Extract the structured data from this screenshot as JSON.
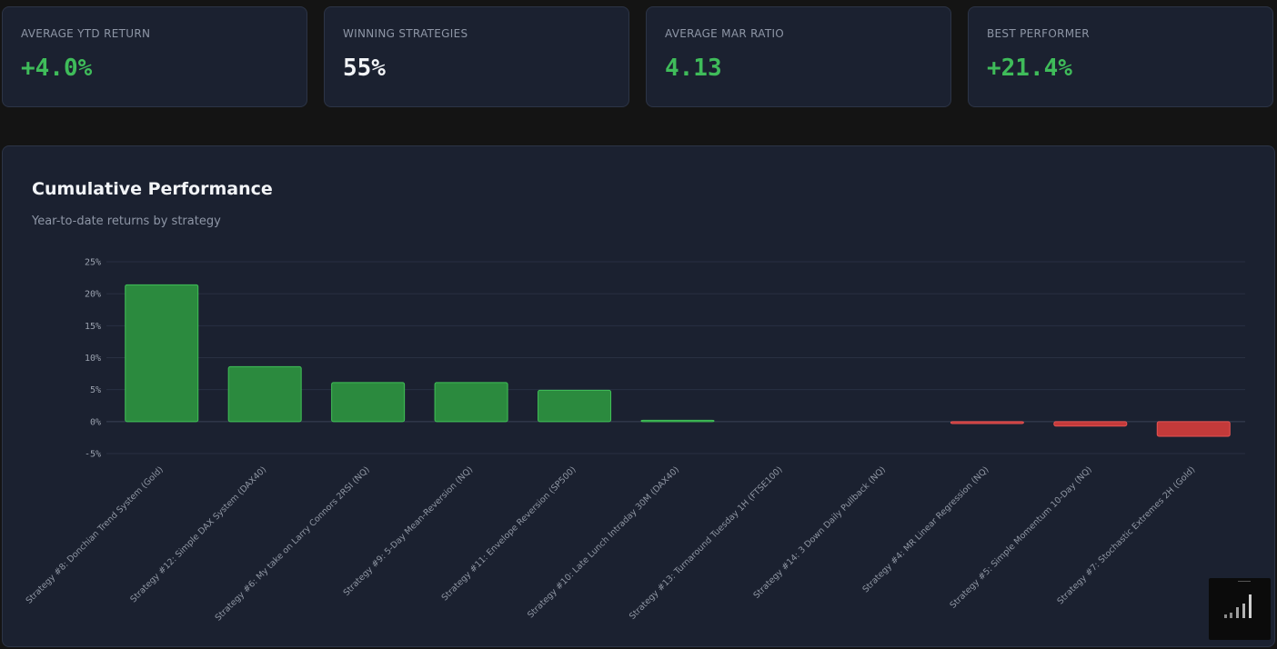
{
  "metrics": {
    "avg_ytd": {
      "label": "AVERAGE YTD RETURN",
      "value": "+4.0%",
      "color": "#3fbc5a"
    },
    "winning": {
      "label": "WINNING STRATEGIES",
      "value": "55%",
      "color": "#f2f4f7"
    },
    "avg_mar": {
      "label": "AVERAGE MAR RATIO",
      "value": "4.13",
      "color": "#3fbc5a"
    },
    "best": {
      "label": "BEST PERFORMER",
      "value": "+21.4%",
      "color": "#3fbc5a"
    }
  },
  "panel": {
    "title": "Cumulative Performance",
    "subtitle": "Year-to-date returns by strategy"
  },
  "chart_data": {
    "type": "bar",
    "title": "Cumulative Performance",
    "subtitle": "Year-to-date returns by strategy",
    "xlabel": "",
    "ylabel": "",
    "ylim": [
      -5,
      25
    ],
    "yticks": [
      25,
      20,
      15,
      10,
      5,
      0,
      -5
    ],
    "ytick_labels": [
      "25%",
      "20%",
      "15%",
      "10%",
      "5%",
      "0%",
      "-5%"
    ],
    "grid": true,
    "categories": [
      "Strategy #8: Donchian Trend System (Gold)",
      "Strategy #12: Simple DAX System (DAX40)",
      "Strategy #6: My take on Larry Connors 2RSI (NQ)",
      "Strategy #9: 5-Day Mean-Reversion (NQ)",
      "Strategy #11: Envelope Reversion (SP500)",
      "Strategy #10: Late Lunch Intraday 30M (DAX40)",
      "Strategy #13: Turnaround Tuesday 1H (FTSE100)",
      "Strategy #14: 3 Down Daily Pullback (NQ)",
      "Strategy #4: MR Linear Regression (NQ)",
      "Strategy #5: Simple Momentum 10-Day (NQ)",
      "Strategy #7: Stochastic Extremes 2H (Gold)"
    ],
    "values": [
      21.4,
      8.6,
      6.1,
      6.1,
      4.9,
      0.2,
      0.0,
      0.0,
      -0.3,
      -0.7,
      -2.3
    ],
    "positive_color": "#2b8a3e",
    "positive_border": "#40c057",
    "negative_color": "#c43a3a",
    "negative_border": "#e55353"
  },
  "widget": {
    "icon": "bar-chart-icon"
  }
}
